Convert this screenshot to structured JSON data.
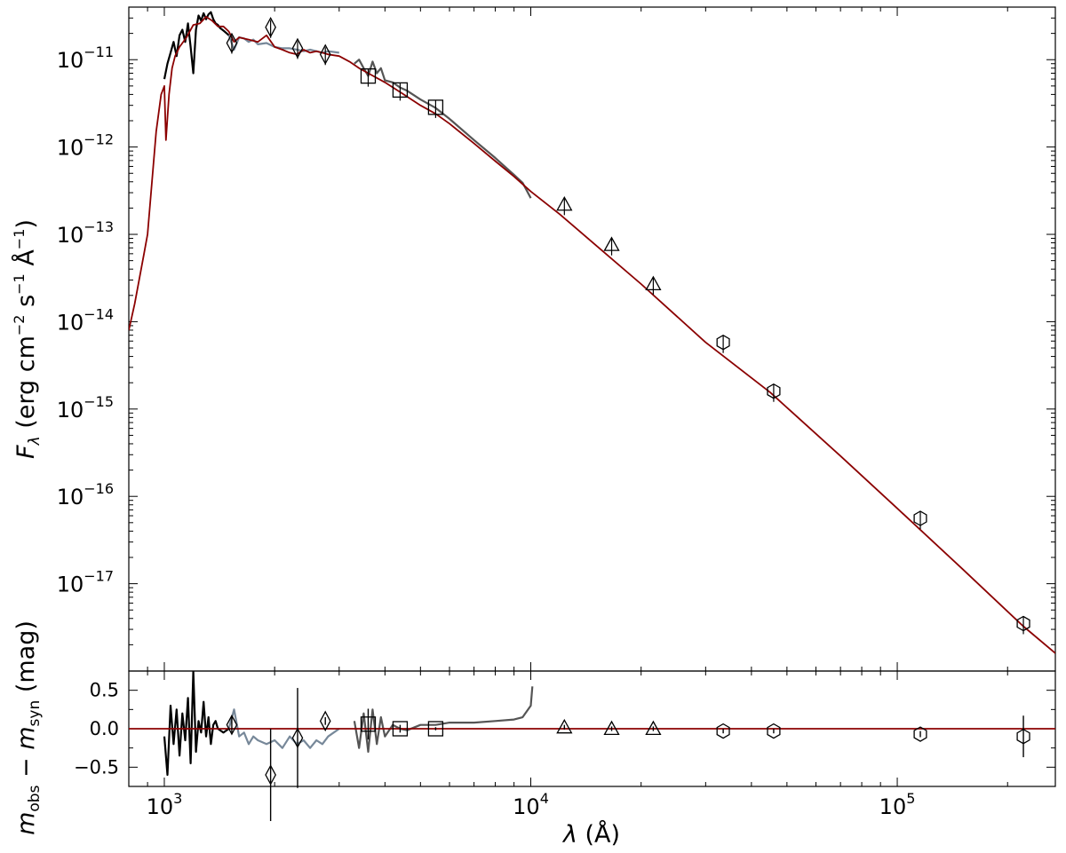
{
  "chart_data": [
    {
      "type": "line",
      "panel": "sed",
      "xscale": "log",
      "yscale": "log",
      "xlim": [
        800,
        270000
      ],
      "ylim": [
        1e-18,
        4e-11
      ],
      "xlabel": "λ (Å)",
      "ylabel": "F_λ (erg cm⁻² s⁻¹ Å⁻¹)",
      "y_tick_labels": [
        {
          "base": "10",
          "exp": "−11",
          "value": 1e-11
        },
        {
          "base": "10",
          "exp": "−12",
          "value": 1e-12
        },
        {
          "base": "10",
          "exp": "−13",
          "value": 1e-13
        },
        {
          "base": "10",
          "exp": "−14",
          "value": 1e-14
        },
        {
          "base": "10",
          "exp": "−15",
          "value": 1e-15
        },
        {
          "base": "10",
          "exp": "−16",
          "value": 1e-16
        },
        {
          "base": "10",
          "exp": "−17",
          "value": 1e-17
        }
      ],
      "colors": {
        "model": "#8b0000",
        "spec_uv": "#000000",
        "spec_uv2": "#778899",
        "spec_opt": "#555555",
        "markers": "#000000"
      },
      "series": [
        {
          "role": "model-spectrum",
          "x": [
            800,
            830,
            880,
            900,
            950,
            980,
            1000,
            1010,
            1030,
            1050,
            1070,
            1100,
            1150,
            1200,
            1250,
            1300,
            1350,
            1400,
            1450,
            1500,
            1550,
            1600,
            1700,
            1800,
            1900,
            2000,
            2100,
            2200,
            2300,
            2400,
            2500,
            2600,
            2700,
            2800,
            3000,
            3200,
            3400,
            3600,
            4000,
            4500,
            5000,
            5500,
            6000,
            7000,
            8000,
            9000,
            10000,
            12000,
            15000,
            20000,
            30000,
            45000,
            70000,
            100000,
            150000,
            220000,
            270000
          ],
          "y": [
            8e-15,
            1.6e-14,
            6e-14,
            1e-13,
            1.5e-12,
            4e-12,
            5e-12,
            1.2e-12,
            4e-12,
            8e-12,
            1.1e-11,
            1.4e-11,
            1.8e-11,
            2.5e-11,
            2.6e-11,
            3.1e-11,
            2.8e-11,
            2.4e-11,
            2.4e-11,
            2.1e-11,
            1.6e-11,
            1.8e-11,
            1.7e-11,
            1.6e-11,
            1.9e-11,
            1.4e-11,
            1.3e-11,
            1.2e-11,
            1.15e-11,
            1.3e-11,
            1.2e-11,
            1.25e-11,
            1.2e-11,
            1.15e-11,
            1.1e-11,
            9.5e-12,
            8e-12,
            7e-12,
            5.5e-12,
            4e-12,
            3e-12,
            2.4e-12,
            1.85e-12,
            1.1e-12,
            6.9e-13,
            4.6e-13,
            3.1e-13,
            1.7e-13,
            7.6e-14,
            2.7e-14,
            5.8e-15,
            1.55e-15,
            2.9e-16,
            7.3e-17,
            1.5e-17,
            3.3e-18,
            1.6e-18
          ]
        },
        {
          "role": "uv-spectrum-black",
          "x": [
            1000,
            1020,
            1040,
            1060,
            1080,
            1100,
            1120,
            1140,
            1160,
            1180,
            1200,
            1220,
            1240,
            1260,
            1280,
            1300,
            1320,
            1340,
            1360,
            1380,
            1400,
            1420,
            1440,
            1460,
            1480,
            1500
          ],
          "y": [
            6e-12,
            9e-12,
            1.2e-11,
            1.6e-11,
            1.1e-11,
            1.9e-11,
            2.2e-11,
            1.6e-11,
            2.6e-11,
            1.4e-11,
            7e-12,
            2.2e-11,
            3.2e-11,
            2.8e-11,
            3.4e-11,
            2.9e-11,
            3.3e-11,
            3.5e-11,
            2.9e-11,
            2.6e-11,
            2.5e-11,
            2.3e-11,
            2.2e-11,
            2.1e-11,
            2e-11,
            1.9e-11
          ]
        },
        {
          "role": "uv-spectrum-grey",
          "x": [
            1500,
            1550,
            1600,
            1650,
            1700,
            1750,
            1800,
            1900,
            2000,
            2100,
            2200,
            2300,
            2400,
            2500,
            2600,
            2700,
            2800,
            3000
          ],
          "y": [
            1.9e-11,
            1.3e-11,
            1.8e-11,
            1.75e-11,
            1.6e-11,
            1.7e-11,
            1.5e-11,
            1.55e-11,
            1.4e-11,
            1.35e-11,
            1.35e-11,
            1.3e-11,
            1.25e-11,
            1.3e-11,
            1.25e-11,
            1.2e-11,
            1.25e-11,
            1.2e-11
          ]
        },
        {
          "role": "optical-spectrum",
          "x": [
            3300,
            3400,
            3500,
            3600,
            3700,
            3800,
            3900,
            4000,
            4200,
            4400,
            4600,
            5000,
            5500,
            6000,
            7000,
            8000,
            9000,
            9500,
            10000
          ],
          "y": [
            9e-12,
            1e-11,
            8e-12,
            6.5e-12,
            9.5e-12,
            7e-12,
            8e-12,
            5.8e-12,
            5.5e-12,
            4.8e-12,
            4.4e-12,
            3.5e-12,
            2.8e-12,
            2.1e-12,
            1.2e-12,
            7.5e-13,
            4.8e-13,
            3.9e-13,
            2.6e-13
          ]
        }
      ],
      "photometry": [
        {
          "marker": "diamond",
          "x": [
            1528,
            1950,
            2310,
            2750
          ],
          "y": [
            1.55e-11,
            2.35e-11,
            1.35e-11,
            1.15e-11
          ]
        },
        {
          "marker": "square",
          "x": [
            3600,
            4400,
            5500
          ],
          "y": [
            6.5e-12,
            4.5e-12,
            2.85e-12
          ]
        },
        {
          "marker": "triangle",
          "x": [
            12350,
            16620,
            21590
          ],
          "y": [
            2.2e-13,
            7.6e-14,
            2.7e-14
          ]
        },
        {
          "marker": "hexagon",
          "x": [
            33500,
            46000,
            115600,
            220900
          ],
          "y": [
            5.8e-15,
            1.6e-15,
            5.6e-17,
            3.5e-18
          ]
        }
      ]
    },
    {
      "type": "line",
      "panel": "residuals",
      "xscale": "log",
      "yscale": "linear",
      "xlim": [
        800,
        270000
      ],
      "ylim": [
        -0.75,
        0.75
      ],
      "xlabel": "λ (Å)",
      "ylabel": "m_obs − m_syn (mag)",
      "x_tick_labels": [
        {
          "base": "10",
          "exp": "3",
          "value": 1000
        },
        {
          "base": "10",
          "exp": "4",
          "value": 10000
        },
        {
          "base": "10",
          "exp": "5",
          "value": 100000
        }
      ],
      "y_tick_labels": [
        "0.5",
        "0.0",
        "−0.5"
      ],
      "y_ticks": [
        0.5,
        0.0,
        -0.5
      ],
      "zero_line": 0.0,
      "series": [
        {
          "role": "uv-residual-black",
          "x": [
            1000,
            1020,
            1040,
            1060,
            1080,
            1100,
            1120,
            1140,
            1160,
            1180,
            1200,
            1220,
            1240,
            1260,
            1280,
            1300,
            1320,
            1340,
            1360,
            1380,
            1400,
            1450,
            1500
          ],
          "y": [
            -0.1,
            -0.6,
            0.3,
            -0.2,
            0.25,
            -0.35,
            0.2,
            -0.15,
            0.4,
            -0.45,
            0.75,
            -0.3,
            0.1,
            -0.05,
            0.35,
            -0.1,
            0.15,
            -0.2,
            0.05,
            0.1,
            0.0,
            -0.05,
            0.0
          ]
        },
        {
          "role": "uv-residual-grey",
          "x": [
            1500,
            1550,
            1600,
            1650,
            1700,
            1750,
            1800,
            1900,
            2000,
            2100,
            2200,
            2300,
            2400,
            2500,
            2600,
            2700,
            2800,
            3000
          ],
          "y": [
            0.0,
            0.25,
            -0.1,
            -0.05,
            -0.2,
            -0.1,
            -0.15,
            -0.2,
            -0.15,
            -0.25,
            -0.1,
            -0.2,
            -0.15,
            -0.25,
            -0.15,
            -0.2,
            -0.1,
            0.0
          ]
        },
        {
          "role": "optical-residual",
          "x": [
            3300,
            3400,
            3500,
            3600,
            3700,
            3800,
            3900,
            4000,
            4200,
            4400,
            4600,
            5000,
            5500,
            6000,
            7000,
            8000,
            9000,
            9500,
            10000,
            10100
          ],
          "y": [
            0.1,
            -0.25,
            0.2,
            -0.3,
            0.25,
            -0.2,
            0.15,
            -0.1,
            0.05,
            0.0,
            -0.02,
            0.05,
            0.05,
            0.08,
            0.08,
            0.1,
            0.12,
            0.15,
            0.3,
            0.55
          ]
        }
      ],
      "points": [
        {
          "marker": "diamond",
          "x": [
            1528,
            1950,
            2310,
            2750
          ],
          "y": [
            0.05,
            -0.6,
            -0.12,
            0.1
          ],
          "err": [
            0.1,
            0.6,
            0.65,
            0.05
          ]
        },
        {
          "marker": "square",
          "x": [
            3600,
            4400,
            5500
          ],
          "y": [
            0.06,
            0.0,
            0.0
          ],
          "err": [
            0.2,
            0.05,
            0.02
          ]
        },
        {
          "marker": "triangle",
          "x": [
            12350,
            16620,
            21590
          ],
          "y": [
            0.02,
            0.0,
            0.0
          ],
          "err": [
            0.03,
            0.03,
            0.03
          ]
        },
        {
          "marker": "hexagon",
          "x": [
            33500,
            46000,
            115600,
            220900
          ],
          "y": [
            -0.03,
            -0.03,
            -0.07,
            -0.1
          ],
          "err": [
            0.03,
            0.03,
            0.04,
            0.27
          ]
        }
      ]
    }
  ]
}
